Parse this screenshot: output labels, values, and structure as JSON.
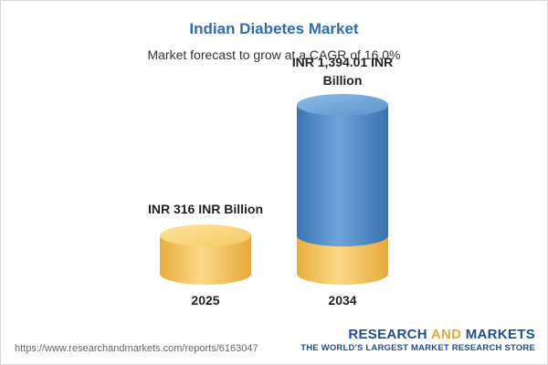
{
  "chart_data": {
    "type": "bar",
    "title": "Indian Diabetes Market",
    "subtitle": "Market forecast to grow at a CAGR of 16.0%",
    "categories": [
      "2025",
      "2034"
    ],
    "values": [
      316,
      1394.01
    ],
    "data_labels": [
      "INR 316 INR Billion",
      "INR 1,394.01 INR Billion"
    ],
    "unit": "INR Billion",
    "colors": {
      "base": "#f3c15c",
      "growth": "#4a86c5"
    }
  },
  "source_url": "https://www.researchandmarkets.com/reports/6163047",
  "brand": {
    "name_part1": "RESEARCH ",
    "name_part2": "AND",
    "name_part3": " MARKETS",
    "tagline": "THE WORLD'S LARGEST MARKET RESEARCH STORE"
  }
}
